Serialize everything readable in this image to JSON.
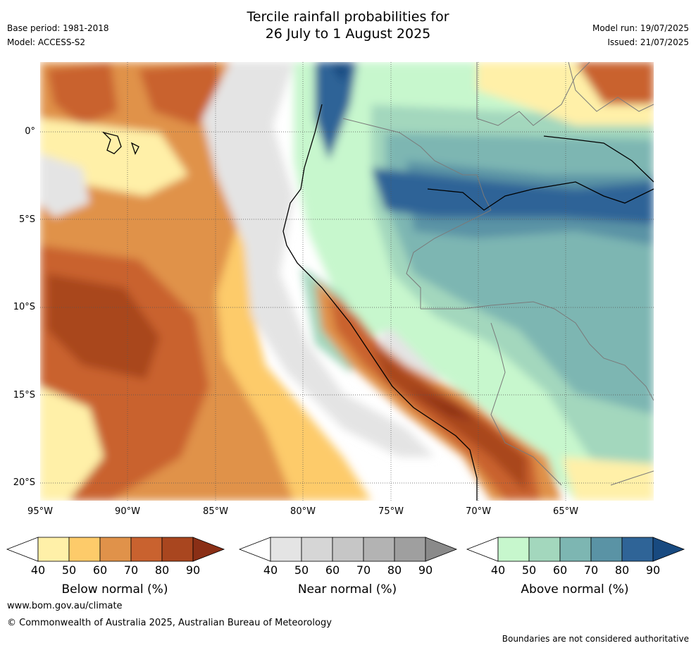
{
  "header": {
    "title_line1": "Tercile rainfall probabilities for",
    "title_line2": "26 July to 1 August 2025",
    "base_period": "Base period: 1981-2018",
    "model": "Model: ACCESS-S2",
    "model_run": "Model run: 19/07/2025",
    "issued": "Issued: 21/07/2025"
  },
  "map": {
    "lat_labels": [
      "0°",
      "5°S",
      "10°S",
      "15°S",
      "20°S"
    ],
    "lon_labels": [
      "95°W",
      "90°W",
      "85°W",
      "80°W",
      "75°W",
      "70°W",
      "65°W"
    ],
    "lat_values": [
      0,
      -5,
      -10,
      -15,
      -20
    ],
    "lon_values": [
      -95,
      -90,
      -85,
      -80,
      -75,
      -70,
      -65
    ],
    "extent": {
      "lon_min": -95,
      "lon_max": -60,
      "lat_min": -21,
      "lat_max": 4
    }
  },
  "legends": [
    {
      "title": "Below normal (%)",
      "ticks": [
        "40",
        "50",
        "60",
        "70",
        "80",
        "90"
      ],
      "colors": [
        "#fff0a8",
        "#fdcb6a",
        "#e0924a",
        "#c9622f",
        "#a9461f",
        "#8a2f16"
      ]
    },
    {
      "title": "Near normal (%)",
      "ticks": [
        "40",
        "50",
        "60",
        "70",
        "80",
        "90"
      ],
      "colors": [
        "#e4e4e4",
        "#d6d6d6",
        "#c6c6c6",
        "#b3b3b3",
        "#9f9f9f",
        "#8a8a8a"
      ]
    },
    {
      "title": "Above normal (%)",
      "ticks": [
        "40",
        "50",
        "60",
        "70",
        "80",
        "90"
      ],
      "colors": [
        "#c7f7cd",
        "#a3d7bd",
        "#7db6b2",
        "#5a93a5",
        "#2f6497",
        "#184a80"
      ]
    }
  ],
  "footer": {
    "website": "www.bom.gov.au/climate",
    "copyright": "© Commonwealth of Australia 2025, Australian Bureau of Meteorology",
    "disclaimer": "Boundaries are not considered authoritative"
  }
}
